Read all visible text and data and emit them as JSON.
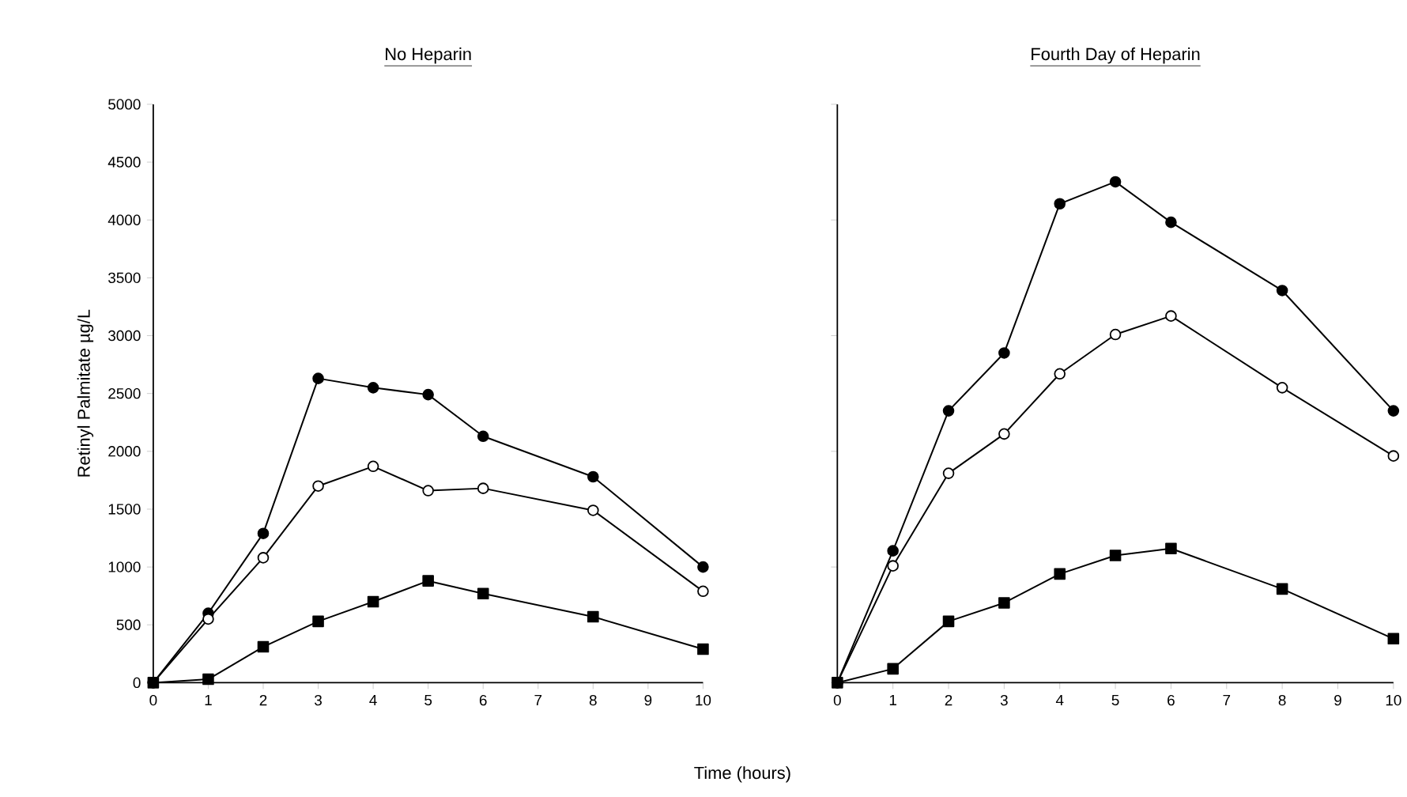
{
  "chart_data": [
    {
      "type": "line",
      "title": "No Heparin",
      "xlabel": "Time (hours)",
      "ylabel": "Retinyl Palmitate   µg/L",
      "x": [
        0,
        1,
        2,
        3,
        4,
        5,
        6,
        8,
        10
      ],
      "xlim": [
        0,
        10
      ],
      "xticks": [
        0,
        1,
        2,
        3,
        4,
        5,
        6,
        7,
        8,
        9,
        10
      ],
      "ylim": [
        0,
        5000
      ],
      "yticks": [
        0,
        500,
        1000,
        1500,
        2000,
        2500,
        3000,
        3500,
        4000,
        4500,
        5000
      ],
      "line_style": "solid",
      "series": [
        {
          "color": "#000000",
          "marker": "circle",
          "values": [
            0,
            600,
            1290,
            2630,
            2550,
            2490,
            2130,
            1780,
            1000
          ]
        },
        {
          "color": "#000000",
          "colors": [
            "#ffffff",
            "#ffffff",
            "#ffffff",
            "#ffffff",
            "#ffffff",
            "#ffffff",
            "#ffffff",
            "#ffffff",
            "#ffffff"
          ],
          "marker": "circle",
          "values": [
            0,
            550,
            1080,
            1700,
            1870,
            1660,
            1680,
            1490,
            790
          ]
        },
        {
          "color": "#000000",
          "marker": "square",
          "values": [
            0,
            30,
            310,
            530,
            700,
            880,
            770,
            570,
            290
          ]
        }
      ]
    },
    {
      "type": "line",
      "title": "Fourth Day of Heparin",
      "x": [
        0,
        1,
        2,
        3,
        4,
        5,
        6,
        8,
        10
      ],
      "xlim": [
        0,
        10
      ],
      "xticks": [
        0,
        1,
        2,
        3,
        4,
        5,
        6,
        7,
        8,
        9,
        10
      ],
      "ylim": [
        0,
        5000
      ],
      "yticks": [
        {
          "value": 0,
          "label": null
        },
        {
          "value": 1000,
          "label": null
        },
        {
          "value": 2000,
          "label": null
        },
        {
          "value": 3000,
          "label": null
        },
        {
          "value": 4000,
          "label": null
        },
        {
          "value": 5000,
          "label": null
        }
      ],
      "tick_labels": "x",
      "line_style": "solid",
      "series": [
        {
          "color": "#000000",
          "marker": "circle",
          "values": [
            0,
            1140,
            2350,
            2850,
            4140,
            4330,
            3980,
            3390,
            2350
          ]
        },
        {
          "color": "#000000",
          "colors": [
            "#ffffff",
            "#ffffff",
            "#ffffff",
            "#ffffff",
            "#ffffff",
            "#ffffff",
            "#ffffff",
            "#ffffff",
            "#ffffff"
          ],
          "marker": "circle",
          "values": [
            0,
            1010,
            1810,
            2150,
            2670,
            3010,
            3170,
            2550,
            1960
          ]
        },
        {
          "color": "#000000",
          "marker": "square",
          "values": [
            0,
            120,
            530,
            690,
            940,
            1100,
            1160,
            810,
            380
          ]
        }
      ]
    }
  ]
}
